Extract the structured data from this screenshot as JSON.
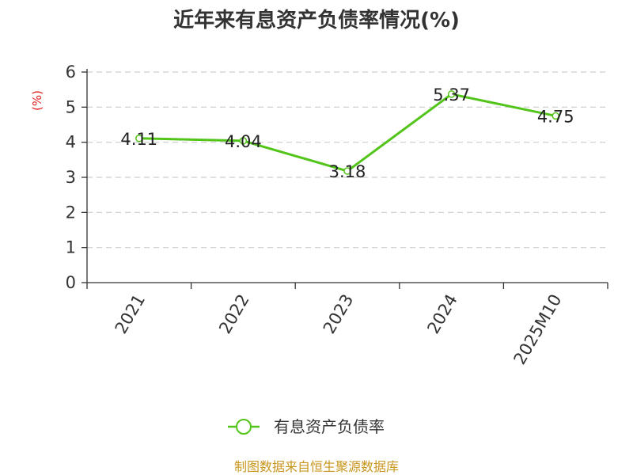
{
  "chart_data": {
    "type": "line",
    "title": "近年来有息资产负债率情况(%)",
    "ylabel": "(%)",
    "xlabel": "",
    "categories": [
      "2021",
      "2022",
      "2023",
      "2024",
      "2025M10"
    ],
    "series": [
      {
        "name": "有息资产负债率",
        "values": [
          4.11,
          4.04,
          3.18,
          5.37,
          4.75
        ],
        "color": "#52c41a"
      }
    ],
    "data_labels": [
      "4.11",
      "4.04",
      "3.18",
      "5.37",
      "4.75"
    ],
    "ylim": [
      0,
      6
    ],
    "yticks": [
      0,
      1,
      2,
      3,
      4,
      5,
      6
    ],
    "ytick_labels": [
      "0",
      "1",
      "2",
      "3",
      "4",
      "5",
      "6"
    ],
    "grid": true,
    "legend_position": "bottom",
    "colors": {
      "line": "#52c41a",
      "ylabel": "#e02020",
      "source": "#c8961e",
      "axis": "#333333",
      "grid": "#cccccc"
    }
  },
  "footer": {
    "source": "制图数据来自恒生聚源数据库"
  }
}
